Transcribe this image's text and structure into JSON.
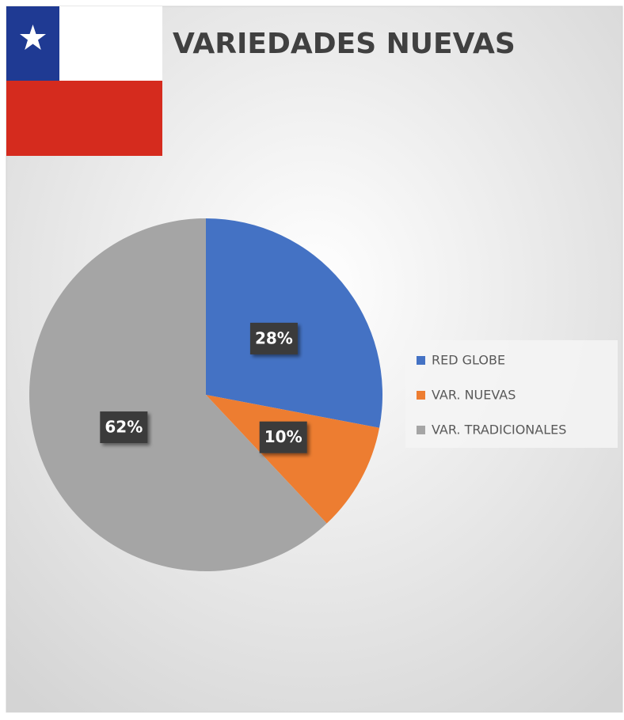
{
  "chart_data": {
    "type": "pie",
    "title": "VARIEDADES NUEVAS",
    "categories": [
      "RED GLOBE",
      "VAR. NUEVAS",
      "VAR. TRADICIONALES"
    ],
    "values": [
      28,
      10,
      62
    ],
    "value_labels": [
      "28%",
      "10%",
      "62%"
    ],
    "colors": [
      "#4472c4",
      "#ed7d31",
      "#a5a5a5"
    ],
    "legend": "right"
  }
}
